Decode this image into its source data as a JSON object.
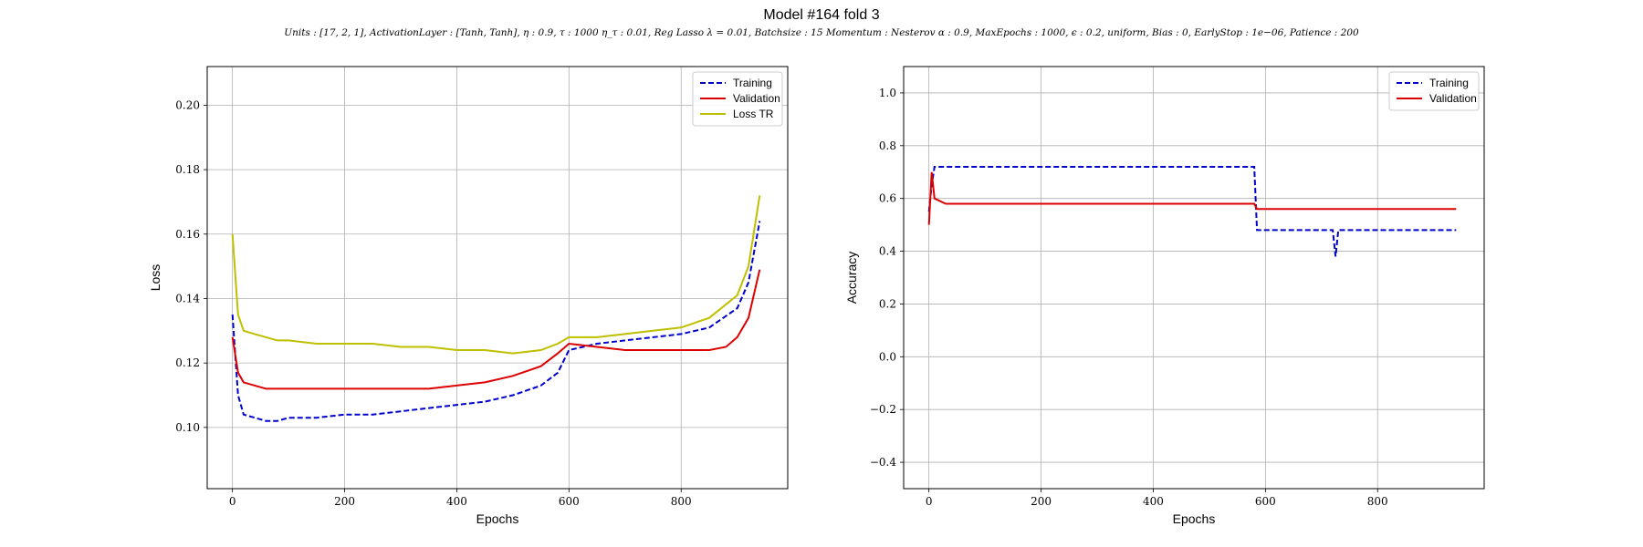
{
  "chart_data": [
    {
      "type": "line",
      "title": "Model #164 fold 3",
      "subtitle": "Units : [17, 2, 1], ActivationLayer : [Tanh, Tanh], η : 0.9, τ : 1000 η_τ : 0.01, Reg Lasso λ = 0.01, Batchsize : 15 Momentum : Nesterov α : 0.9, MaxEpochs : 1000, ϵ : 0.2, uniform, Bias : 0, EarlyStop : 1e−06, Patience : 200",
      "xlabel": "Epochs",
      "ylabel": "Loss",
      "xlim": [
        -45,
        990
      ],
      "ylim": [
        0.081,
        0.212
      ],
      "xticks": [
        0,
        200,
        400,
        600,
        800
      ],
      "yticks": [
        0.1,
        0.12,
        0.14,
        0.16,
        0.18,
        0.2
      ],
      "grid": true,
      "legend_position": "top-right",
      "series": [
        {
          "name": "Training",
          "color": "#0000cc",
          "style": "dashed",
          "x": [
            0,
            10,
            20,
            40,
            60,
            80,
            100,
            150,
            200,
            250,
            300,
            350,
            400,
            450,
            500,
            550,
            580,
            600,
            650,
            700,
            750,
            800,
            850,
            900,
            920,
            940
          ],
          "y": [
            0.135,
            0.11,
            0.104,
            0.103,
            0.102,
            0.102,
            0.103,
            0.103,
            0.104,
            0.104,
            0.105,
            0.106,
            0.107,
            0.108,
            0.11,
            0.113,
            0.117,
            0.124,
            0.126,
            0.127,
            0.128,
            0.129,
            0.131,
            0.137,
            0.145,
            0.164
          ]
        },
        {
          "name": "Validation",
          "color": "#dd0000",
          "style": "solid",
          "x": [
            0,
            10,
            20,
            40,
            60,
            80,
            100,
            150,
            200,
            250,
            300,
            350,
            400,
            450,
            500,
            550,
            580,
            600,
            650,
            700,
            750,
            800,
            850,
            880,
            900,
            920,
            940
          ],
          "y": [
            0.128,
            0.117,
            0.114,
            0.113,
            0.112,
            0.112,
            0.112,
            0.112,
            0.112,
            0.112,
            0.112,
            0.112,
            0.113,
            0.114,
            0.116,
            0.119,
            0.123,
            0.126,
            0.125,
            0.124,
            0.124,
            0.124,
            0.124,
            0.125,
            0.128,
            0.134,
            0.149
          ]
        },
        {
          "name": "Loss TR",
          "color": "#bfbf00",
          "style": "solid",
          "x": [
            0,
            10,
            20,
            40,
            60,
            80,
            100,
            150,
            200,
            250,
            300,
            350,
            400,
            450,
            500,
            550,
            580,
            600,
            650,
            700,
            750,
            800,
            850,
            900,
            920,
            940
          ],
          "y": [
            0.16,
            0.135,
            0.13,
            0.129,
            0.128,
            0.127,
            0.127,
            0.126,
            0.126,
            0.126,
            0.125,
            0.125,
            0.124,
            0.124,
            0.123,
            0.124,
            0.126,
            0.128,
            0.128,
            0.129,
            0.13,
            0.131,
            0.134,
            0.141,
            0.15,
            0.172
          ]
        }
      ]
    },
    {
      "type": "line",
      "xlabel": "Epochs",
      "ylabel": "Accuracy",
      "xlim": [
        -45,
        990
      ],
      "ylim": [
        -0.5,
        1.1
      ],
      "xticks": [
        0,
        200,
        400,
        600,
        800
      ],
      "yticks": [
        -0.4,
        -0.2,
        0.0,
        0.2,
        0.4,
        0.6,
        0.8,
        1.0
      ],
      "grid": true,
      "legend_position": "top-right",
      "series": [
        {
          "name": "Training",
          "color": "#0000cc",
          "style": "dashed",
          "x": [
            0,
            5,
            10,
            30,
            60,
            100,
            150,
            200,
            250,
            300,
            350,
            400,
            450,
            500,
            550,
            580,
            585,
            600,
            650,
            700,
            720,
            725,
            730,
            940
          ],
          "y": [
            0.55,
            0.65,
            0.72,
            0.72,
            0.72,
            0.72,
            0.72,
            0.72,
            0.72,
            0.72,
            0.72,
            0.72,
            0.72,
            0.72,
            0.72,
            0.72,
            0.48,
            0.48,
            0.48,
            0.48,
            0.48,
            0.38,
            0.48,
            0.48
          ]
        },
        {
          "name": "Validation",
          "color": "#dd0000",
          "style": "solid",
          "x": [
            0,
            5,
            10,
            30,
            60,
            100,
            150,
            200,
            250,
            300,
            350,
            400,
            450,
            500,
            550,
            580,
            585,
            600,
            650,
            700,
            730,
            940
          ],
          "y": [
            0.5,
            0.7,
            0.6,
            0.58,
            0.58,
            0.58,
            0.58,
            0.58,
            0.58,
            0.58,
            0.58,
            0.58,
            0.58,
            0.58,
            0.58,
            0.58,
            0.56,
            0.56,
            0.56,
            0.56,
            0.56,
            0.56
          ]
        }
      ]
    }
  ]
}
